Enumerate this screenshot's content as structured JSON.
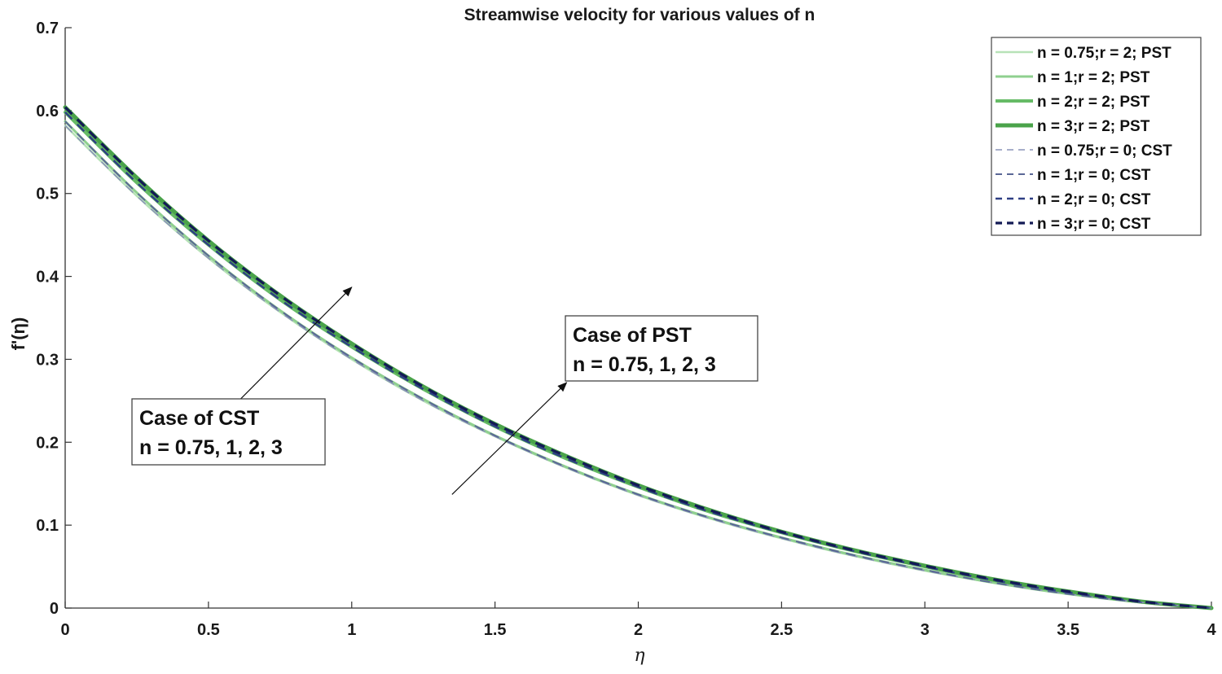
{
  "chart_data": {
    "type": "line",
    "title": "Streamwise velocity for various values of n",
    "xlabel": "η",
    "ylabel": "f'(η)",
    "xlim": [
      0,
      4
    ],
    "ylim": [
      0,
      0.7
    ],
    "xticks": [
      0,
      0.5,
      1,
      1.5,
      2,
      2.5,
      3,
      3.5,
      4
    ],
    "xtick_labels": [
      "0",
      "0.5",
      "1",
      "1.5",
      "2",
      "2.5",
      "3",
      "3.5",
      "4"
    ],
    "yticks": [
      0,
      0.1,
      0.2,
      0.3,
      0.4,
      0.5,
      0.6,
      0.7
    ],
    "ytick_labels": [
      "0",
      "0.1",
      "0.2",
      "0.3",
      "0.4",
      "0.5",
      "0.6",
      "0.7"
    ],
    "x": [
      0,
      0.25,
      0.5,
      0.75,
      1,
      1.25,
      1.5,
      1.75,
      2,
      2.25,
      2.5,
      2.75,
      3,
      3.25,
      3.5,
      3.75,
      4
    ],
    "series": [
      {
        "name": "n = 0.75;r = 2; PST",
        "style": "solid",
        "color": "#b7e2b7",
        "width": 2.5,
        "values": [
          0.582,
          0.497,
          0.422,
          0.357,
          0.3,
          0.25,
          0.207,
          0.169,
          0.136,
          0.108,
          0.084,
          0.063,
          0.045,
          0.03,
          0.017,
          0.007,
          0.0
        ]
      },
      {
        "name": "n = 1;r = 2; PST",
        "style": "solid",
        "color": "#8fd08f",
        "width": 3,
        "values": [
          0.587,
          0.501,
          0.425,
          0.359,
          0.302,
          0.252,
          0.208,
          0.17,
          0.137,
          0.109,
          0.085,
          0.064,
          0.046,
          0.03,
          0.017,
          0.007,
          0.0
        ]
      },
      {
        "name": "n = 2;r = 2; PST",
        "style": "solid",
        "color": "#66bb66",
        "width": 4,
        "values": [
          0.598,
          0.513,
          0.438,
          0.372,
          0.315,
          0.264,
          0.219,
          0.18,
          0.146,
          0.116,
          0.091,
          0.069,
          0.05,
          0.033,
          0.019,
          0.008,
          0.0
        ]
      },
      {
        "name": "n = 3;r = 2; PST",
        "style": "solid",
        "color": "#4aa34a",
        "width": 5,
        "values": [
          0.604,
          0.519,
          0.443,
          0.377,
          0.319,
          0.267,
          0.222,
          0.183,
          0.148,
          0.118,
          0.092,
          0.07,
          0.051,
          0.034,
          0.02,
          0.008,
          0.0
        ]
      },
      {
        "name": "n = 0.75;r = 0; CST",
        "style": "dashed",
        "color": "#8a93b8",
        "width": 1.6,
        "values": [
          0.582,
          0.497,
          0.422,
          0.357,
          0.3,
          0.25,
          0.207,
          0.169,
          0.136,
          0.108,
          0.084,
          0.063,
          0.045,
          0.03,
          0.017,
          0.007,
          0.0
        ]
      },
      {
        "name": "n = 1;r = 0; CST",
        "style": "dashed",
        "color": "#5a6796",
        "width": 2,
        "values": [
          0.587,
          0.501,
          0.425,
          0.359,
          0.302,
          0.252,
          0.208,
          0.17,
          0.137,
          0.109,
          0.085,
          0.064,
          0.046,
          0.03,
          0.017,
          0.007,
          0.0
        ]
      },
      {
        "name": "n = 2;r = 0; CST",
        "style": "dashed",
        "color": "#2e3f84",
        "width": 2.5,
        "values": [
          0.598,
          0.513,
          0.438,
          0.372,
          0.315,
          0.264,
          0.219,
          0.18,
          0.146,
          0.116,
          0.091,
          0.069,
          0.05,
          0.033,
          0.019,
          0.008,
          0.0
        ]
      },
      {
        "name": "n = 3;r = 0; CST",
        "style": "dashed",
        "color": "#131a55",
        "width": 3.2,
        "values": [
          0.604,
          0.519,
          0.443,
          0.377,
          0.319,
          0.267,
          0.222,
          0.183,
          0.148,
          0.118,
          0.092,
          0.07,
          0.051,
          0.034,
          0.02,
          0.008,
          0.0
        ]
      }
    ],
    "legend": {
      "placement": "top-right"
    },
    "annotations": [
      {
        "lines": [
          "Case of PST",
          "n = 0.75, 1, 2, 3"
        ],
        "arrow_from": [
          1.35,
          0.137
        ],
        "arrow_to": [
          1.75,
          0.272
        ]
      },
      {
        "lines": [
          "Case of CST",
          "n = 0.75, 1, 2, 3"
        ],
        "arrow_from": [
          0.6,
          0.248
        ],
        "arrow_to": [
          1.0,
          0.387
        ]
      }
    ],
    "grid": false
  }
}
